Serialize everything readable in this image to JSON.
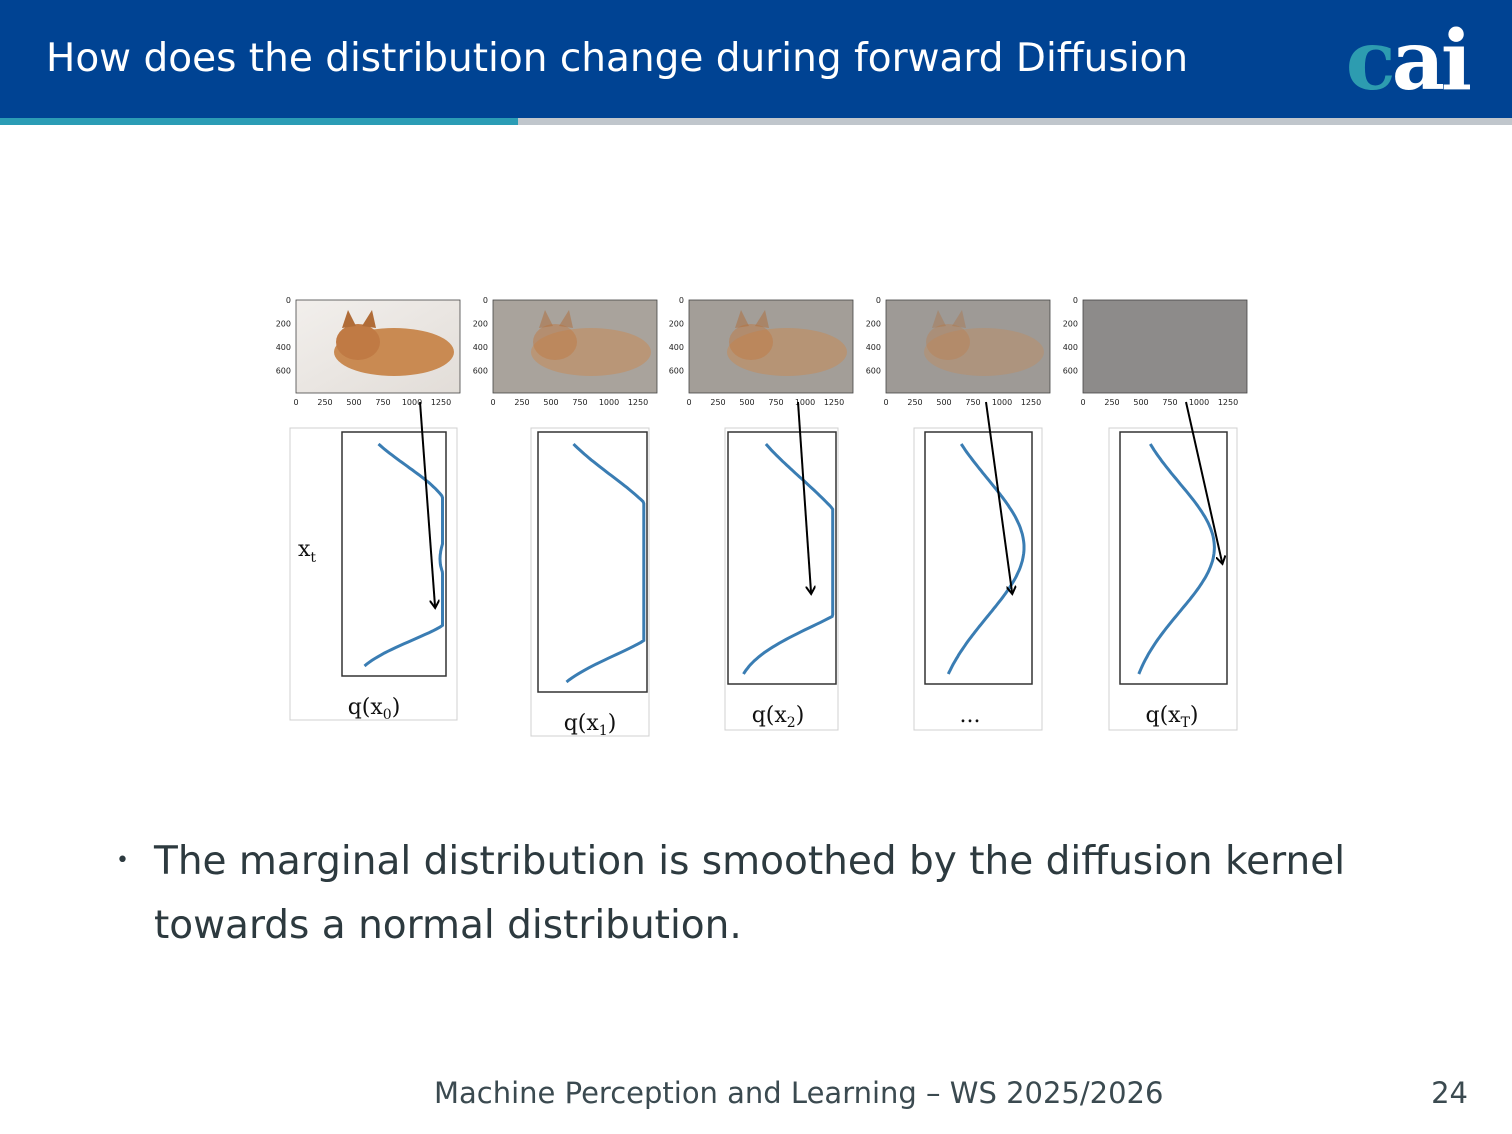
{
  "header": {
    "title": "How does the distribution change during forward Diffusion",
    "logo_c": "c",
    "logo_ai": "ai"
  },
  "figure": {
    "axis_y_ticks": [
      "0",
      "200",
      "400",
      "600"
    ],
    "axis_x_ticks": [
      "0",
      "250",
      "500",
      "750",
      "1000",
      "1250"
    ],
    "y_axis_label": "x",
    "y_axis_label_sub": "t",
    "panels": [
      {
        "label": "q(x",
        "sub": "0",
        "close": ")"
      },
      {
        "label": "q(x",
        "sub": "1",
        "close": ")"
      },
      {
        "label": "q(x",
        "sub": "2",
        "close": ")"
      },
      {
        "label": "...",
        "sub": "",
        "close": ""
      },
      {
        "label": "q(x",
        "sub": "T",
        "close": ")"
      }
    ],
    "colors": {
      "curve": "#3a7db3",
      "arrow": "#000000",
      "frame": "#333333"
    }
  },
  "content": {
    "bullet_text": "The marginal distribution is smoothed by the diffusion kernel towards a normal distribution."
  },
  "footer": {
    "course": "Machine Perception and Learning – WS 2025/2026",
    "page": "24"
  }
}
